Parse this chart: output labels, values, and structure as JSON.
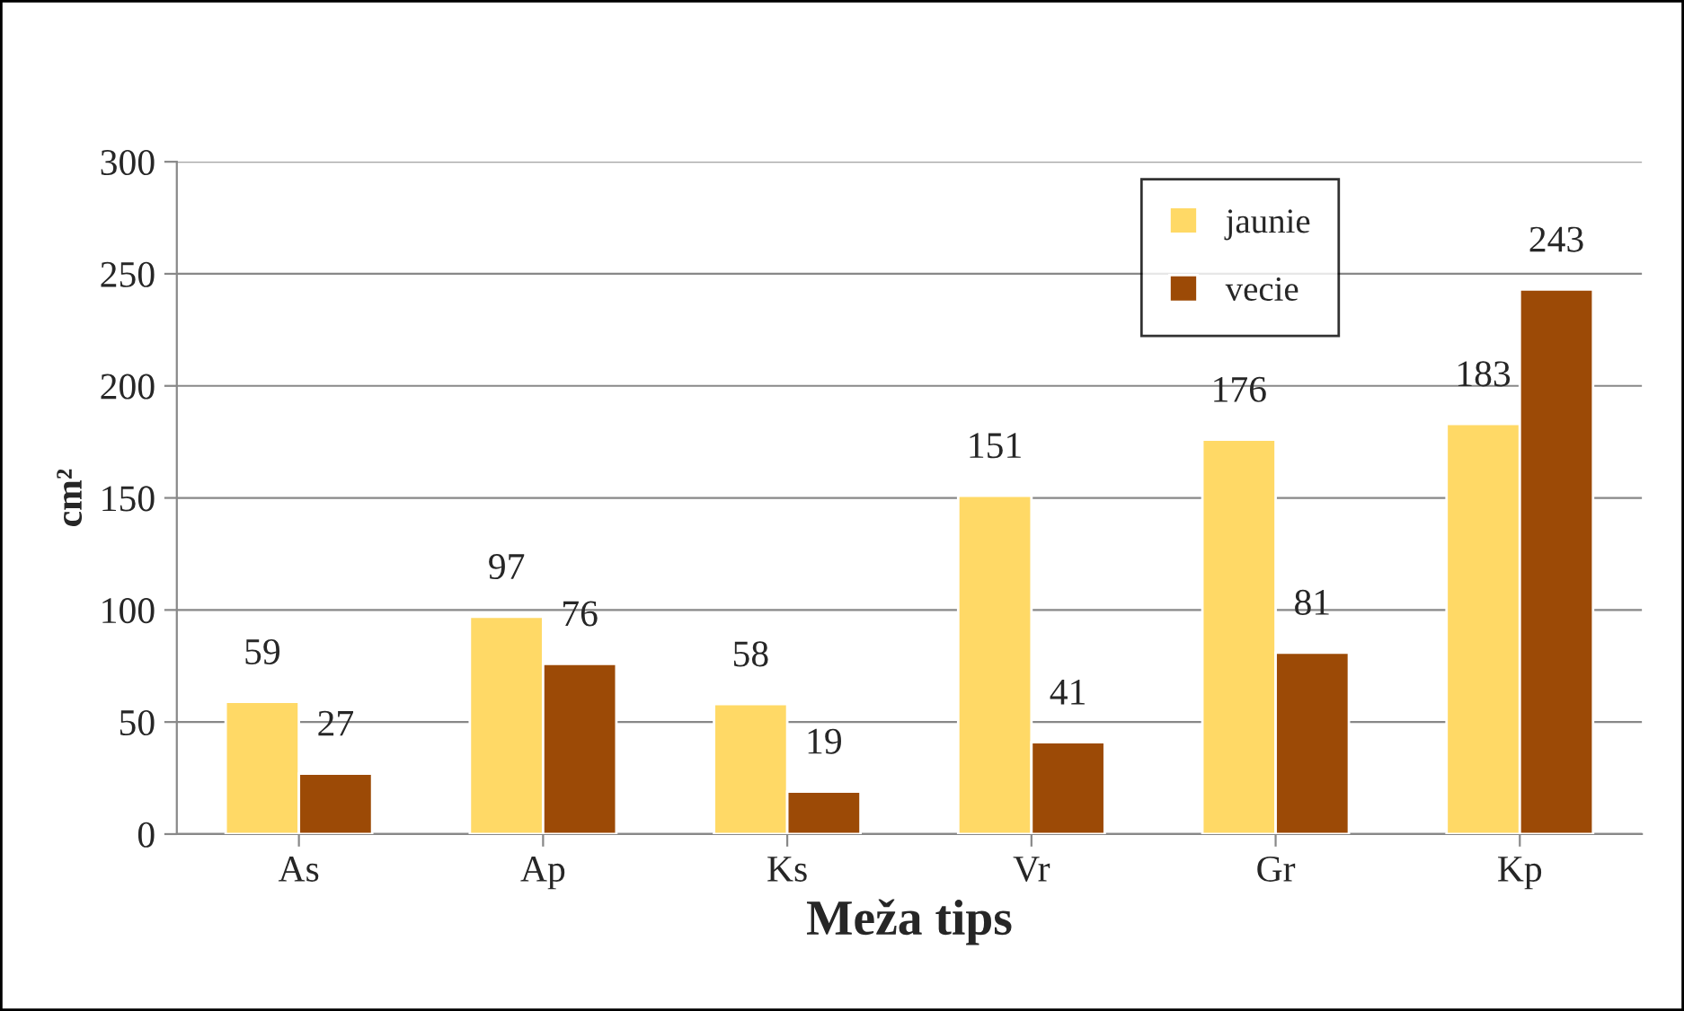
{
  "chart_data": {
    "type": "bar",
    "xlabel": "Meža tips",
    "ylabel": "cm²",
    "categories": [
      "As",
      "Ap",
      "Ks",
      "Vr",
      "Gr",
      "Kp"
    ],
    "series": [
      {
        "name": "jaunie",
        "color": "#ffd966",
        "values": [
          59,
          97,
          58,
          151,
          176,
          183
        ]
      },
      {
        "name": "vecie",
        "color": "#9c4a06",
        "values": [
          27,
          76,
          19,
          41,
          81,
          243
        ]
      }
    ],
    "ylim": [
      0,
      300
    ],
    "yticks": [
      0,
      50,
      100,
      150,
      200,
      250,
      300
    ],
    "grid": "y",
    "legend": "top right",
    "data_labels": true
  }
}
